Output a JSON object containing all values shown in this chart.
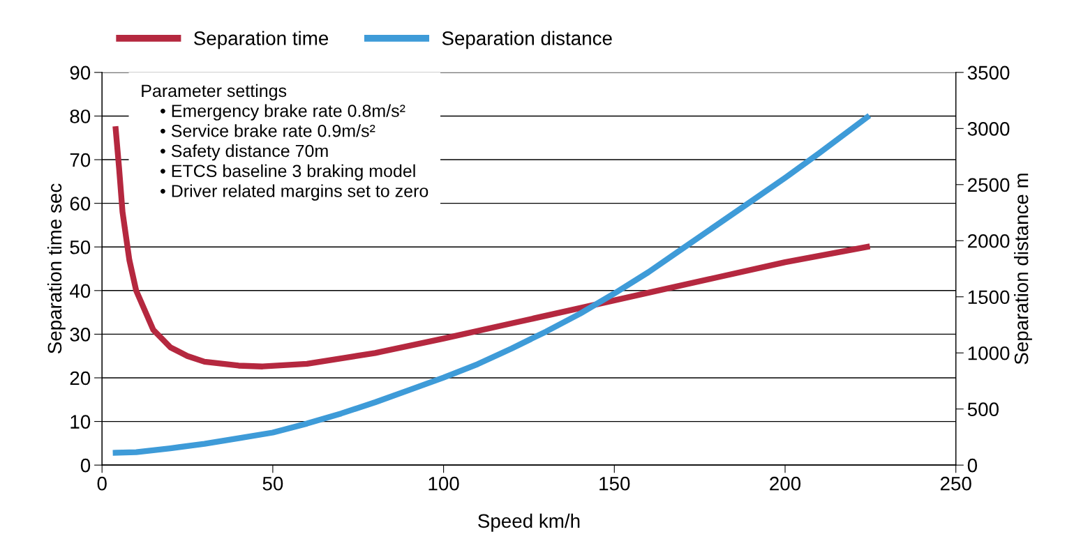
{
  "chart_data": {
    "type": "line",
    "xlabel": "Speed km/h",
    "ylabel": "Separation time sec",
    "y2label": "Separation distance m",
    "xlim": [
      0,
      250
    ],
    "xticks": [
      0,
      50,
      100,
      150,
      200,
      250
    ],
    "ylim": [
      0,
      90
    ],
    "yticks": [
      0,
      10,
      20,
      30,
      40,
      50,
      60,
      70,
      80,
      90
    ],
    "y2lim": [
      0,
      3500
    ],
    "y2ticks": [
      0,
      500,
      1000,
      1500,
      2000,
      2500,
      3000,
      3500
    ],
    "grid": "y",
    "legend": "top",
    "marker": "none",
    "line_style": "solid",
    "series": [
      {
        "name": "Separation time",
        "color": "#b5283f",
        "x": [
          4,
          5,
          6,
          8,
          10,
          15,
          20,
          25,
          30,
          40,
          47,
          60,
          80,
          100,
          120,
          140,
          160,
          180,
          200,
          224
        ],
        "values": [
          77,
          68,
          58,
          47,
          40,
          31,
          27,
          25,
          23.7,
          22.8,
          22.6,
          23.2,
          25.7,
          29,
          32.5,
          36,
          39.5,
          43,
          46.5,
          50
        ]
      },
      {
        "name": "Separation distance",
        "color": "#3e9bd8",
        "axis": "y2",
        "x": [
          4,
          10,
          20,
          30,
          40,
          50,
          60,
          70,
          80,
          90,
          100,
          110,
          120,
          130,
          140,
          150,
          160,
          170,
          180,
          190,
          200,
          210,
          224
        ],
        "values": [
          110,
          115,
          150,
          190,
          240,
          290,
          370,
          460,
          560,
          670,
          780,
          900,
          1040,
          1190,
          1350,
          1530,
          1720,
          1930,
          2140,
          2350,
          2560,
          2780,
          3100
        ]
      }
    ],
    "annotations": [
      "Parameter settings",
      "• Emergency brake rate 0.8m/s²",
      "• Service brake rate 0.9m/s²",
      "• Safety distance 70m",
      "• ETCS baseline 3 braking model",
      "• Driver related margins set to zero"
    ]
  }
}
